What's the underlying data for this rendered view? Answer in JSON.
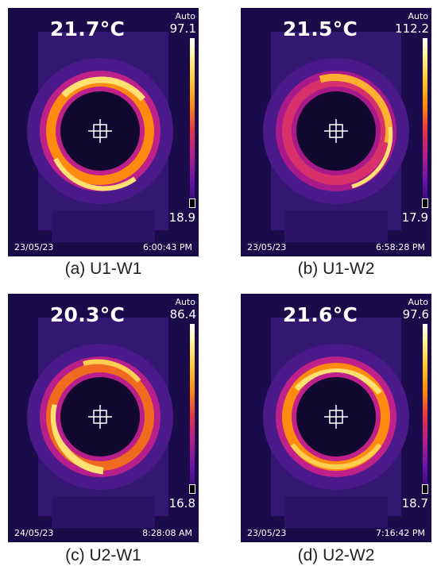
{
  "panels": [
    {
      "temperature": "21.7°C",
      "scale_label": "Auto",
      "scale_max": "97.1",
      "scale_min": "18.9",
      "date": "23/05/23",
      "time": "6:00:43 PM",
      "caption": "(a)  U1-W1"
    },
    {
      "temperature": "21.5°C",
      "scale_label": "Auto",
      "scale_max": "112.2",
      "scale_min": "17.9",
      "date": "23/05/23",
      "time": "6:58:28 PM",
      "caption": "(b)  U1-W2"
    },
    {
      "temperature": "20.3°C",
      "scale_label": "Auto",
      "scale_max": "86.4",
      "scale_min": "16.8",
      "date": "24/05/23",
      "time": "8:28:08 AM",
      "caption": "(c)  U2-W1"
    },
    {
      "temperature": "21.6°C",
      "scale_label": "Auto",
      "scale_max": "97.6",
      "scale_min": "18.7",
      "date": "23/05/23",
      "time": "7:16:42 PM",
      "caption": "(d)  U2-W2"
    }
  ],
  "colors": {
    "background": "#1a0b4a",
    "housing": "#3a1a7a",
    "ring_outer": "#c0208a",
    "ring_mid": "#ff8a10",
    "ring_hot": "#ffe070",
    "center": "#10082e"
  }
}
